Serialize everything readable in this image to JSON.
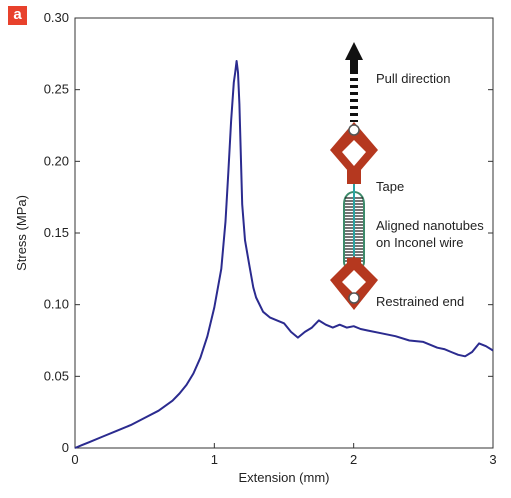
{
  "panel_label": "a",
  "chart_data": {
    "type": "line",
    "title": "",
    "xlabel": "Extension (mm)",
    "ylabel": "Stress (MPa)",
    "xlim": [
      0,
      3
    ],
    "ylim": [
      0,
      0.3
    ],
    "x_ticks": [
      0,
      1,
      2,
      3
    ],
    "x_tick_labels": [
      "0",
      "1",
      "2",
      "3"
    ],
    "y_ticks": [
      0,
      0.05,
      0.1,
      0.15,
      0.2,
      0.25,
      0.3
    ],
    "y_tick_labels": [
      "0",
      "0.05",
      "0.10",
      "0.15",
      "0.20",
      "0.25",
      "0.30"
    ],
    "grid": false,
    "legend": "none",
    "series": [
      {
        "color": "#2b2b8f",
        "points": [
          [
            0,
            0
          ],
          [
            0.05,
            0.002
          ],
          [
            0.1,
            0.004
          ],
          [
            0.2,
            0.008
          ],
          [
            0.3,
            0.012
          ],
          [
            0.4,
            0.016
          ],
          [
            0.5,
            0.021
          ],
          [
            0.6,
            0.026
          ],
          [
            0.7,
            0.033
          ],
          [
            0.75,
            0.038
          ],
          [
            0.8,
            0.044
          ],
          [
            0.85,
            0.052
          ],
          [
            0.9,
            0.063
          ],
          [
            0.95,
            0.078
          ],
          [
            1.0,
            0.098
          ],
          [
            1.05,
            0.125
          ],
          [
            1.08,
            0.158
          ],
          [
            1.1,
            0.192
          ],
          [
            1.12,
            0.228
          ],
          [
            1.14,
            0.255
          ],
          [
            1.15,
            0.262
          ],
          [
            1.16,
            0.27
          ],
          [
            1.17,
            0.262
          ],
          [
            1.18,
            0.24
          ],
          [
            1.19,
            0.205
          ],
          [
            1.2,
            0.17
          ],
          [
            1.22,
            0.145
          ],
          [
            1.25,
            0.128
          ],
          [
            1.28,
            0.112
          ],
          [
            1.3,
            0.105
          ],
          [
            1.35,
            0.095
          ],
          [
            1.4,
            0.091
          ],
          [
            1.45,
            0.089
          ],
          [
            1.5,
            0.087
          ],
          [
            1.55,
            0.081
          ],
          [
            1.6,
            0.077
          ],
          [
            1.65,
            0.081
          ],
          [
            1.7,
            0.084
          ],
          [
            1.75,
            0.089
          ],
          [
            1.8,
            0.086
          ],
          [
            1.85,
            0.084
          ],
          [
            1.9,
            0.086
          ],
          [
            1.95,
            0.084
          ],
          [
            2.0,
            0.085
          ],
          [
            2.05,
            0.083
          ],
          [
            2.1,
            0.082
          ],
          [
            2.2,
            0.08
          ],
          [
            2.3,
            0.078
          ],
          [
            2.4,
            0.075
          ],
          [
            2.5,
            0.074
          ],
          [
            2.55,
            0.072
          ],
          [
            2.6,
            0.07
          ],
          [
            2.65,
            0.069
          ],
          [
            2.7,
            0.067
          ],
          [
            2.75,
            0.065
          ],
          [
            2.8,
            0.064
          ],
          [
            2.85,
            0.067
          ],
          [
            2.9,
            0.073
          ],
          [
            2.95,
            0.071
          ],
          [
            3.0,
            0.068
          ]
        ]
      }
    ],
    "annotations": [
      "Pull direction",
      "Tape",
      "Aligned nanotubes",
      "on Inconel wire",
      "Restrained end"
    ]
  },
  "colors": {
    "line": "#2b2b8f",
    "badge": "#e8412c",
    "clamp": "#b5381f",
    "wire": "#2aa3a3"
  }
}
